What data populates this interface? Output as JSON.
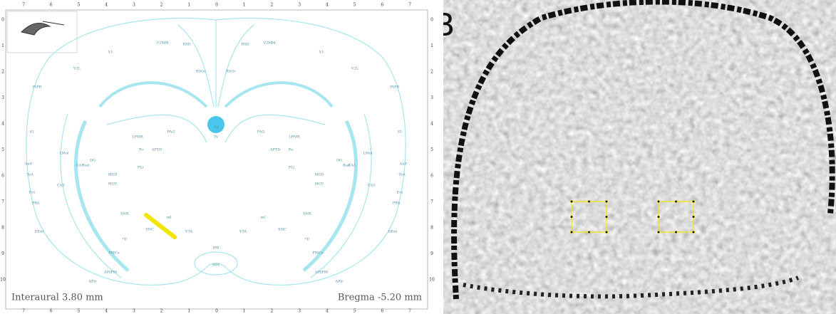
{
  "atlas": {
    "interaural": "Interaural 3.80 mm",
    "bregma": "Bregma -5.20 mm",
    "top_scale": [
      "7",
      "6",
      "5",
      "4",
      "3",
      "2",
      "1",
      "0",
      "1",
      "2",
      "3",
      "4",
      "5",
      "6",
      "7"
    ],
    "side_scale": [
      "0",
      "1",
      "2",
      "3",
      "4",
      "5",
      "6",
      "7",
      "8",
      "9",
      "10"
    ],
    "regions": [
      "V1",
      "V2MM",
      "RSD",
      "RSGc",
      "V2L",
      "PtPR",
      "S1",
      "LMol",
      "DG",
      "CA1",
      "CA3",
      "Po",
      "LPMR",
      "APTD",
      "PLi",
      "MGD",
      "MGV",
      "SNR",
      "SNC",
      "ml",
      "cp",
      "VTA",
      "IPR",
      "MM",
      "PMCo",
      "AHiPM",
      "APir",
      "DEnt",
      "PRh",
      "Ect",
      "TeA",
      "AuV",
      "Rad",
      "3V",
      "Aq",
      "PAG"
    ]
  },
  "mri": {
    "panel_label": "B"
  }
}
